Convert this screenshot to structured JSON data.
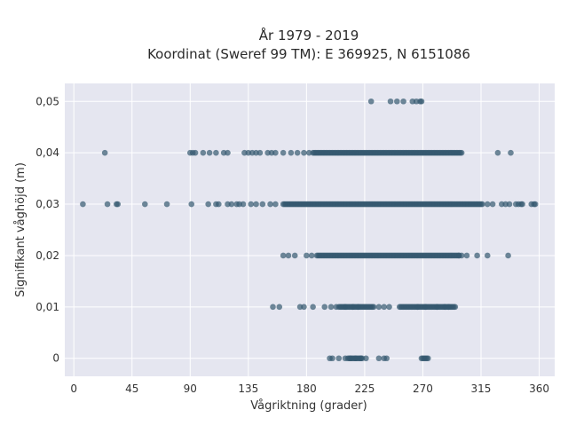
{
  "chart_data": {
    "type": "scatter",
    "title_line1": "År 1979 - 2019",
    "title_line2": "Koordinat (Sweref 99 TM): E 369925, N 6151086",
    "xlabel": "Vågriktning (grader)",
    "ylabel": "Signifikant våghöjd (m)",
    "xlim": [
      -7,
      372
    ],
    "ylim": [
      -0.0035,
      0.0535
    ],
    "x_ticks": [
      0,
      45,
      90,
      135,
      180,
      225,
      270,
      315,
      360
    ],
    "x_tick_labels": [
      "0",
      "45",
      "90",
      "135",
      "180",
      "225",
      "270",
      "315",
      "360"
    ],
    "y_ticks": [
      0,
      0.01,
      0.02,
      0.03,
      0.04,
      0.05
    ],
    "y_tick_labels": [
      "0",
      "0,01",
      "0,02",
      "0,03",
      "0,04",
      "0,05"
    ],
    "grid": true,
    "colors": {
      "point": "#34586f",
      "plot_background": "#e5e6f0",
      "grid": "#ffffff"
    },
    "levels": [
      {
        "y": 0.05,
        "points": [
          230,
          245,
          250,
          255,
          262,
          265,
          268,
          269
        ]
      },
      {
        "y": 0.04,
        "points": [
          24,
          90,
          92,
          94,
          100,
          105,
          110,
          116,
          119,
          132,
          135,
          138,
          141,
          144,
          150,
          153,
          156,
          162,
          168,
          173,
          178,
          182,
          328,
          338
        ],
        "ranges": [
          [
            185,
            300
          ]
        ]
      },
      {
        "y": 0.03,
        "points": [
          7,
          26,
          33,
          34,
          55,
          72,
          91,
          104,
          110,
          112,
          119,
          122,
          126,
          128,
          131,
          137,
          141,
          146,
          152,
          156,
          320,
          324,
          331,
          334,
          337,
          342,
          344,
          346,
          347,
          354,
          356,
          357
        ],
        "ranges": [
          [
            162,
            316
          ]
        ]
      },
      {
        "y": 0.02,
        "points": [
          162,
          166,
          171,
          180,
          184,
          298,
          300,
          304,
          312,
          320,
          336
        ],
        "ranges": [
          [
            188,
            298
          ]
        ]
      },
      {
        "y": 0.01,
        "points": [
          154,
          159,
          175,
          178,
          185,
          194,
          199,
          203,
          210,
          216,
          220,
          236,
          240,
          244,
          266,
          272,
          281,
          287,
          290
        ],
        "ranges": [
          [
            205,
            232
          ],
          [
            252,
            295
          ]
        ]
      },
      {
        "y": 0,
        "points": [
          198,
          200,
          205,
          210,
          212,
          214,
          218,
          222,
          226,
          236,
          240,
          242,
          269,
          270,
          271,
          272,
          273,
          274
        ],
        "ranges": [
          [
            213,
            223
          ]
        ]
      }
    ]
  }
}
